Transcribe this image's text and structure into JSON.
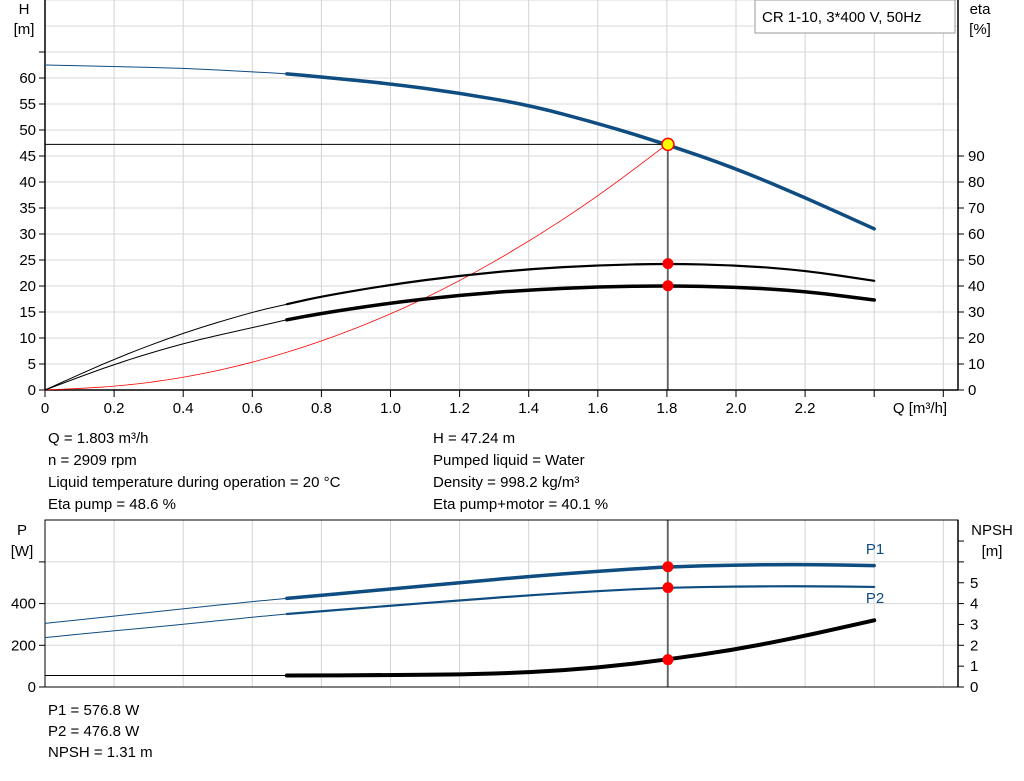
{
  "chart_data": [
    {
      "type": "line",
      "title": "CR 1-10, 3*400 V, 50Hz",
      "xlabel": "Q [m³/h]",
      "ylabel": "H\n[m]",
      "ylabel_unit": "[m]",
      "ylabel_name": "H",
      "y2label_name": "eta",
      "y2label_unit": "[%]",
      "xlim": [
        0,
        2.6
      ],
      "ylim": [
        0,
        75
      ],
      "y2lim": [
        0,
        150
      ],
      "x_ticks": [
        "0",
        "0.2",
        "0.4",
        "0.6",
        "0.8",
        "1.0",
        "1.2",
        "1.4",
        "1.6",
        "1.8",
        "2.0",
        "2.2"
      ],
      "y_ticks": [
        "0",
        "5",
        "10",
        "15",
        "20",
        "25",
        "30",
        "35",
        "40",
        "45",
        "50",
        "55",
        "60"
      ],
      "y2_ticks": [
        "0",
        "10",
        "20",
        "30",
        "40",
        "50",
        "60",
        "70",
        "80",
        "90"
      ],
      "grid": true,
      "colors": {
        "head": "#0f4c81",
        "eta": "#000000",
        "system": "#ff0000",
        "duty_fill": "#ffff00",
        "marker": "#ff0000"
      },
      "series": [
        {
          "key": "H",
          "axis": "left",
          "x": [
            0,
            0.2,
            0.4,
            0.6,
            0.7,
            0.8,
            1.0,
            1.2,
            1.4,
            1.6,
            1.8,
            2.0,
            2.2,
            2.4
          ],
          "y": [
            62.5,
            62.2,
            61.9,
            61.2,
            60.8,
            60.2,
            58.9,
            57.1,
            54.8,
            51.3,
            47.24,
            42.6,
            37.0,
            31.0
          ]
        },
        {
          "key": "eta_pump",
          "axis": "right",
          "x": [
            0,
            0.2,
            0.4,
            0.6,
            0.7,
            0.8,
            1.0,
            1.2,
            1.4,
            1.6,
            1.8,
            2.0,
            2.2,
            2.4
          ],
          "y": [
            0,
            12,
            22,
            30,
            33,
            36,
            40.5,
            44,
            46.5,
            48,
            48.6,
            48,
            46,
            42
          ]
        },
        {
          "key": "eta_pump_motor",
          "axis": "right",
          "x": [
            0,
            0.2,
            0.4,
            0.6,
            0.7,
            0.8,
            1.0,
            1.2,
            1.4,
            1.6,
            1.8,
            2.0,
            2.2,
            2.4
          ],
          "y": [
            0,
            10,
            18,
            24,
            27,
            29.5,
            33.5,
            36.5,
            38.5,
            39.7,
            40.1,
            39.6,
            38,
            34.6
          ]
        },
        {
          "key": "system",
          "axis": "left",
          "x": [
            0,
            0.2,
            0.4,
            0.6,
            0.8,
            1.0,
            1.2,
            1.4,
            1.6,
            1.8
          ],
          "y": [
            0,
            0.6,
            2.3,
            5.2,
            9.3,
            14.5,
            20.9,
            28.5,
            37.2,
            47.24
          ]
        }
      ],
      "duty_point": {
        "Q": 1.803,
        "H": 47.24,
        "eta_pump": 48.6,
        "eta_pump_motor": 40.1
      }
    },
    {
      "type": "line",
      "ylabel_name": "P",
      "ylabel_unit": "[W]",
      "y2label_name": "NPSH",
      "y2label_unit": "[m]",
      "xlim": [
        0,
        2.6
      ],
      "ylim": [
        0,
        800
      ],
      "y2lim": [
        0,
        8
      ],
      "y_ticks": [
        "0",
        "200",
        "400"
      ],
      "y2_ticks": [
        "0",
        "1",
        "2",
        "3",
        "4",
        "5"
      ],
      "grid": true,
      "series": [
        {
          "name": "P1",
          "axis": "left",
          "x": [
            0,
            0.2,
            0.4,
            0.6,
            0.7,
            1.0,
            1.2,
            1.4,
            1.6,
            1.8,
            2.0,
            2.2,
            2.4
          ],
          "y": [
            305,
            340,
            375,
            410,
            425,
            470,
            500,
            530,
            555,
            576.8,
            585,
            588,
            582
          ]
        },
        {
          "name": "P2",
          "axis": "left",
          "x": [
            0,
            0.2,
            0.4,
            0.6,
            0.7,
            1.0,
            1.2,
            1.4,
            1.6,
            1.8,
            2.0,
            2.2,
            2.4
          ],
          "y": [
            237,
            270,
            300,
            335,
            350,
            390,
            415,
            440,
            460,
            476.8,
            482,
            484,
            480
          ]
        },
        {
          "key": "NPSH",
          "axis": "right",
          "x": [
            0,
            0.7,
            1.0,
            1.2,
            1.4,
            1.6,
            1.8,
            2.0,
            2.2,
            2.4
          ],
          "y": [
            0.55,
            0.55,
            0.57,
            0.6,
            0.7,
            0.92,
            1.31,
            1.8,
            2.45,
            3.2
          ]
        }
      ],
      "duty_point": {
        "Q": 1.803,
        "P1": 576.8,
        "P2": 476.8,
        "NPSH": 1.31
      }
    }
  ],
  "info": {
    "left": [
      "Q = 1.803 m³/h",
      "n = 2909 rpm",
      "Liquid temperature during operation = 20 °C",
      "Eta pump = 48.6 %"
    ],
    "right": [
      "H = 47.24 m",
      "Pumped liquid = Water",
      "Density = 998.2 kg/m³",
      "Eta pump+motor = 40.1 %"
    ],
    "bottom": [
      "P1 = 576.8 W",
      "P2 = 476.8 W",
      "NPSH = 1.31 m"
    ]
  }
}
